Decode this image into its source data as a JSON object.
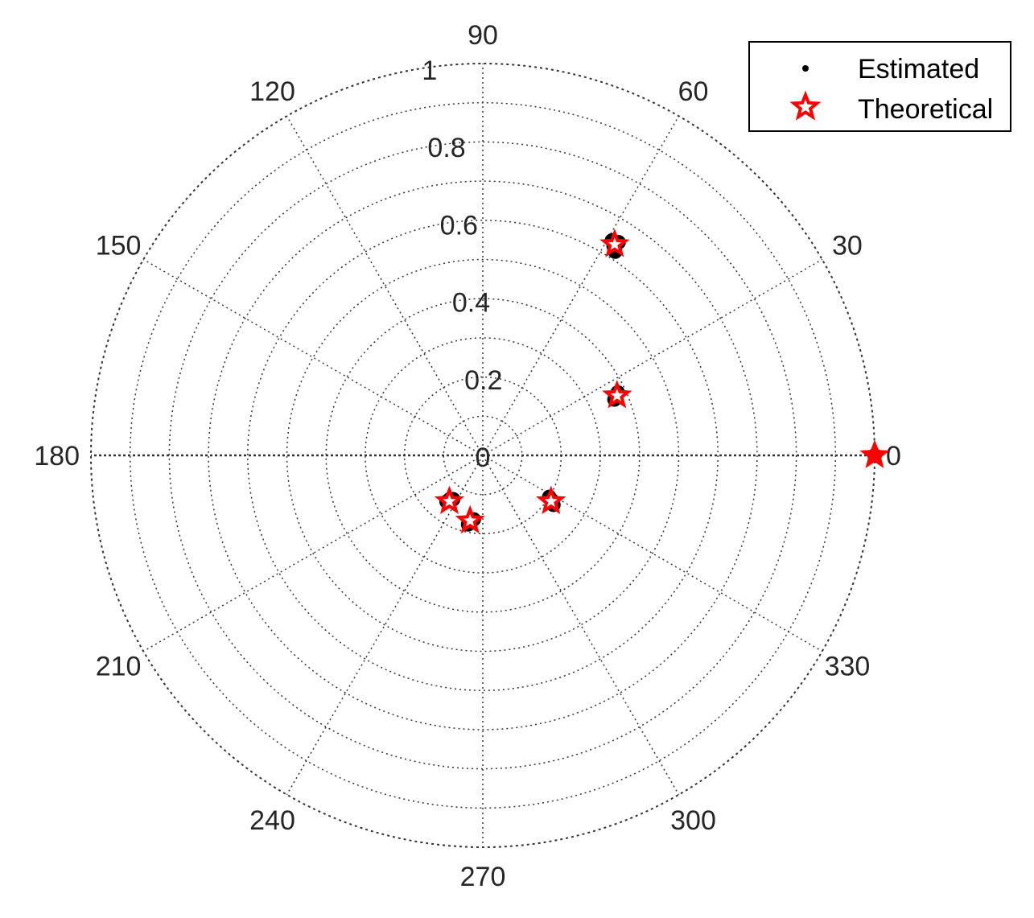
{
  "chart_data": {
    "type": "scatter",
    "coordinate_system": "polar",
    "title": "",
    "radial_range": [
      0,
      1
    ],
    "radial_ticks": [
      "0",
      "0.2",
      "0.4",
      "0.6",
      "0.8",
      "1"
    ],
    "angular_ticks": [
      "0",
      "30",
      "60",
      "90",
      "120",
      "150",
      "180",
      "210",
      "240",
      "270",
      "300",
      "330"
    ],
    "grid": true,
    "legend_position": "top-right",
    "legend": [
      {
        "label": "Estimated",
        "marker": "dot",
        "color": "#000000"
      },
      {
        "label": "Theoretical",
        "marker": "star",
        "color": "#ff0000"
      }
    ],
    "series": [
      {
        "name": "Estimated",
        "color": "#000000",
        "marker": "dot",
        "points": [
          {
            "theta": 58,
            "r": 0.63
          },
          {
            "theta": 59,
            "r": 0.64
          },
          {
            "theta": 57,
            "r": 0.62
          },
          {
            "theta": 57.5,
            "r": 0.645
          },
          {
            "theta": 24,
            "r": 0.37
          },
          {
            "theta": 25,
            "r": 0.38
          },
          {
            "theta": 23,
            "r": 0.365
          },
          {
            "theta": 327,
            "r": 0.21
          },
          {
            "theta": 325,
            "r": 0.22
          },
          {
            "theta": 328,
            "r": 0.2
          },
          {
            "theta": 260,
            "r": 0.17
          },
          {
            "theta": 258,
            "r": 0.18
          },
          {
            "theta": 262,
            "r": 0.165
          },
          {
            "theta": 233,
            "r": 0.14
          },
          {
            "theta": 232,
            "r": 0.15
          },
          {
            "theta": 236,
            "r": 0.135
          },
          {
            "theta": 0,
            "r": 1.0
          }
        ]
      },
      {
        "name": "Theoretical",
        "color": "#ff0000",
        "marker": "star",
        "points": [
          {
            "theta": 58,
            "r": 0.635
          },
          {
            "theta": 24,
            "r": 0.375
          },
          {
            "theta": 326,
            "r": 0.21
          },
          {
            "theta": 259,
            "r": 0.17
          },
          {
            "theta": 234,
            "r": 0.145
          },
          {
            "theta": 0,
            "r": 1.0
          }
        ]
      }
    ]
  }
}
